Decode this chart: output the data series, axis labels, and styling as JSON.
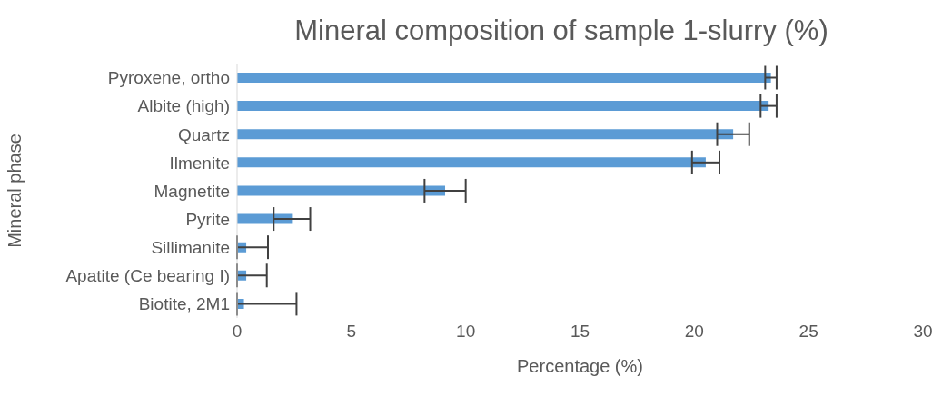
{
  "chart_data": {
    "type": "bar",
    "orientation": "horizontal",
    "title": "Mineral composition of sample 1-slurry (%)",
    "xlabel": "Percentage (%)",
    "ylabel": "Mineral phase",
    "categories": [
      "Pyroxene, ortho",
      "Albite (high)",
      "Quartz",
      "Ilmenite",
      "Magnetite",
      "Pyrite",
      "Sillimanite",
      "Apatite (Ce bearing I)",
      "Biotite, 2M1"
    ],
    "values": [
      23.35,
      23.25,
      21.7,
      20.5,
      9.1,
      2.4,
      0.4,
      0.4,
      0.3
    ],
    "errors": [
      0.25,
      0.35,
      0.7,
      0.6,
      0.9,
      0.8,
      [
        0,
        1.35
      ],
      [
        0,
        1.3
      ],
      [
        0,
        2.6
      ]
    ],
    "color": "#5b9bd5",
    "xlim": [
      0,
      30
    ],
    "xticks": [
      0,
      5,
      10,
      15,
      20,
      25,
      30
    ],
    "grid": false,
    "legend": false
  }
}
